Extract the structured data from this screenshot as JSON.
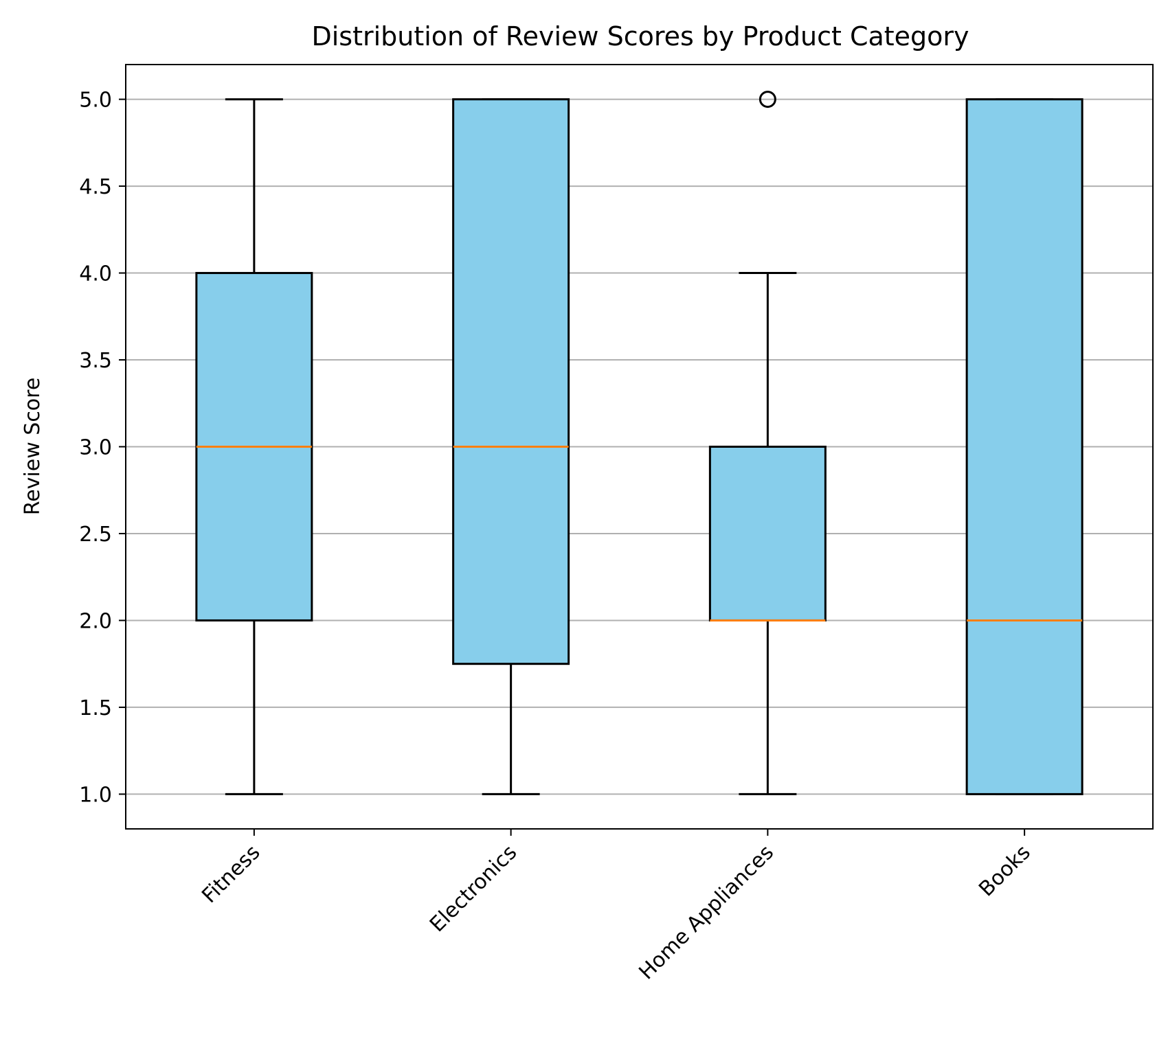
{
  "chart_data": {
    "type": "box",
    "title": "Distribution of Review Scores by Product Category",
    "xlabel": "",
    "ylabel": "Review Score",
    "categories": [
      "Fitness",
      "Electronics",
      "Home Appliances",
      "Books"
    ],
    "boxes": [
      {
        "category": "Fitness",
        "whisker_low": 1.0,
        "q1": 2.0,
        "median": 3.0,
        "q3": 4.0,
        "whisker_high": 5.0,
        "outliers": []
      },
      {
        "category": "Electronics",
        "whisker_low": 1.0,
        "q1": 1.75,
        "median": 3.0,
        "q3": 5.0,
        "whisker_high": 5.0,
        "outliers": []
      },
      {
        "category": "Home Appliances",
        "whisker_low": 1.0,
        "q1": 2.0,
        "median": 2.0,
        "q3": 3.0,
        "whisker_high": 4.0,
        "outliers": [
          5.0
        ]
      },
      {
        "category": "Books",
        "whisker_low": 1.0,
        "q1": 1.0,
        "median": 2.0,
        "q3": 5.0,
        "whisker_high": 5.0,
        "outliers": []
      }
    ],
    "ylim": [
      0.8,
      5.2
    ],
    "yticks": [
      "1.0",
      "1.5",
      "2.0",
      "2.5",
      "3.0",
      "3.5",
      "4.0",
      "4.5",
      "5.0"
    ],
    "xtick_rotation_deg": 45,
    "grid": "y",
    "legend": "none",
    "colors": {
      "box_fill": "#87ceeb",
      "box_edge": "#000000",
      "median": "#ff7f0e",
      "grid": "#b0b0b0"
    }
  }
}
